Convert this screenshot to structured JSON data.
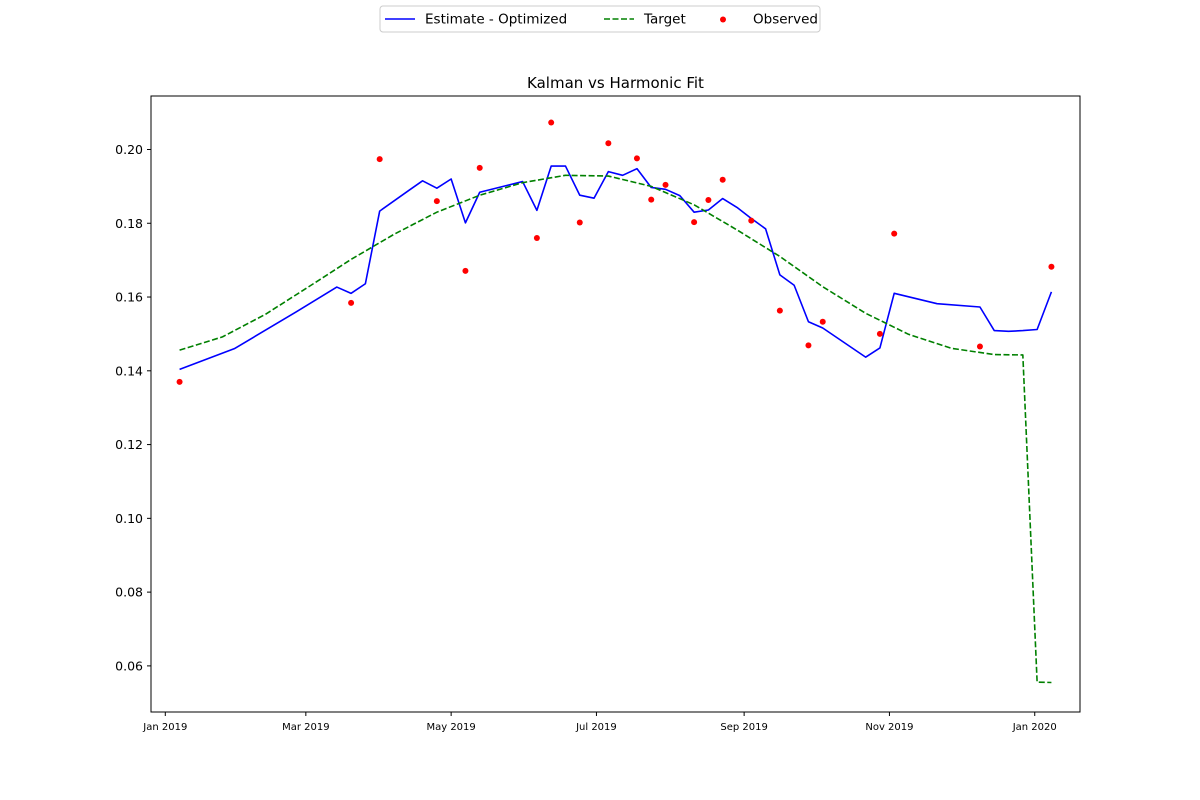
{
  "chart_data": {
    "type": "line",
    "title": "Kalman vs Harmonic Fit",
    "xlabel": "",
    "ylabel": "",
    "x_axis": {
      "type": "date",
      "range": [
        "2018-12-26",
        "2020-01-20"
      ],
      "ticks": [
        {
          "date": "2019-01-01",
          "label": "Jan 2019"
        },
        {
          "date": "2019-03-01",
          "label": "Mar 2019"
        },
        {
          "date": "2019-05-01",
          "label": "May 2019"
        },
        {
          "date": "2019-07-01",
          "label": "Jul 2019"
        },
        {
          "date": "2019-09-01",
          "label": "Sep 2019"
        },
        {
          "date": "2019-11-01",
          "label": "Nov 2019"
        },
        {
          "date": "2020-01-01",
          "label": "Jan 2020"
        }
      ]
    },
    "y_axis": {
      "range": [
        0.0475,
        0.2145
      ],
      "ticks": [
        0.06,
        0.08,
        0.1,
        0.12,
        0.14,
        0.16,
        0.18,
        0.2
      ],
      "tick_labels": [
        "0.06",
        "0.08",
        "0.10",
        "0.12",
        "0.14",
        "0.16",
        "0.18",
        "0.20"
      ]
    },
    "grid": false,
    "legend": {
      "placement": "top-center outside",
      "columns": 3
    },
    "series": [
      {
        "name": "Estimate - Optimized",
        "kind": "line",
        "style": "solid",
        "color": "#0000ff",
        "points": [
          [
            "2019-01-07",
            0.1404
          ],
          [
            "2019-01-30",
            0.146
          ],
          [
            "2019-02-25",
            0.156
          ],
          [
            "2019-03-14",
            0.1627
          ],
          [
            "2019-03-20",
            0.161
          ],
          [
            "2019-03-26",
            0.1636
          ],
          [
            "2019-04-01",
            0.1833
          ],
          [
            "2019-04-13",
            0.1888
          ],
          [
            "2019-04-19",
            0.1915
          ],
          [
            "2019-04-25",
            0.1895
          ],
          [
            "2019-05-01",
            0.192
          ],
          [
            "2019-05-07",
            0.1801
          ],
          [
            "2019-05-13",
            0.1884
          ],
          [
            "2019-05-31",
            0.1913
          ],
          [
            "2019-06-06",
            0.1835
          ],
          [
            "2019-06-12",
            0.1955
          ],
          [
            "2019-06-18",
            0.1955
          ],
          [
            "2019-06-24",
            0.1876
          ],
          [
            "2019-06-30",
            0.1868
          ],
          [
            "2019-07-06",
            0.194
          ],
          [
            "2019-07-12",
            0.193
          ],
          [
            "2019-07-18",
            0.1948
          ],
          [
            "2019-07-24",
            0.1897
          ],
          [
            "2019-07-30",
            0.1892
          ],
          [
            "2019-08-05",
            0.1875
          ],
          [
            "2019-08-11",
            0.183
          ],
          [
            "2019-08-17",
            0.1836
          ],
          [
            "2019-08-23",
            0.1867
          ],
          [
            "2019-08-29",
            0.1843
          ],
          [
            "2019-09-04",
            0.1813
          ],
          [
            "2019-09-10",
            0.1785
          ],
          [
            "2019-09-16",
            0.166
          ],
          [
            "2019-09-22",
            0.1632
          ],
          [
            "2019-09-28",
            0.1533
          ],
          [
            "2019-10-04",
            0.1516
          ],
          [
            "2019-10-22",
            0.1437
          ],
          [
            "2019-10-28",
            0.1462
          ],
          [
            "2019-11-03",
            0.161
          ],
          [
            "2019-11-21",
            0.1582
          ],
          [
            "2019-12-09",
            0.1573
          ],
          [
            "2019-12-15",
            0.1509
          ],
          [
            "2019-12-21",
            0.1507
          ],
          [
            "2019-12-27",
            0.1509
          ],
          [
            "2020-01-02",
            0.1512
          ],
          [
            "2020-01-08",
            0.1614
          ]
        ]
      },
      {
        "name": "Target",
        "kind": "line",
        "style": "dashed",
        "color": "#008000",
        "points": [
          [
            "2019-01-07",
            0.1456
          ],
          [
            "2019-01-25",
            0.1492
          ],
          [
            "2019-02-12",
            0.1553
          ],
          [
            "2019-03-02",
            0.1627
          ],
          [
            "2019-03-20",
            0.1702
          ],
          [
            "2019-04-07",
            0.177
          ],
          [
            "2019-04-25",
            0.183
          ],
          [
            "2019-05-13",
            0.1876
          ],
          [
            "2019-05-31",
            0.191
          ],
          [
            "2019-06-18",
            0.193
          ],
          [
            "2019-07-06",
            0.1928
          ],
          [
            "2019-07-24",
            0.19
          ],
          [
            "2019-08-11",
            0.185
          ],
          [
            "2019-08-29",
            0.1782
          ],
          [
            "2019-09-16",
            0.171
          ],
          [
            "2019-10-04",
            0.1628
          ],
          [
            "2019-10-22",
            0.1556
          ],
          [
            "2019-11-09",
            0.1499
          ],
          [
            "2019-11-27",
            0.1461
          ],
          [
            "2019-12-15",
            0.1444
          ],
          [
            "2019-12-27",
            0.1443
          ],
          [
            "2020-01-02",
            0.0556
          ],
          [
            "2020-01-08",
            0.0555
          ]
        ]
      },
      {
        "name": "Observed",
        "kind": "scatter",
        "color": "#ff0000",
        "points": [
          [
            "2019-01-07",
            0.137
          ],
          [
            "2019-03-20",
            0.1584
          ],
          [
            "2019-04-01",
            0.1974
          ],
          [
            "2019-04-25",
            0.186
          ],
          [
            "2019-05-07",
            0.1671
          ],
          [
            "2019-05-13",
            0.195
          ],
          [
            "2019-06-06",
            0.176
          ],
          [
            "2019-06-12",
            0.2073
          ],
          [
            "2019-06-24",
            0.1802
          ],
          [
            "2019-07-06",
            0.2017
          ],
          [
            "2019-07-18",
            0.1976
          ],
          [
            "2019-07-24",
            0.1864
          ],
          [
            "2019-07-30",
            0.1904
          ],
          [
            "2019-08-11",
            0.1803
          ],
          [
            "2019-08-17",
            0.1863
          ],
          [
            "2019-08-23",
            0.1918
          ],
          [
            "2019-09-04",
            0.1807
          ],
          [
            "2019-09-16",
            0.1563
          ],
          [
            "2019-09-28",
            0.1469
          ],
          [
            "2019-10-04",
            0.1533
          ],
          [
            "2019-10-28",
            0.15
          ],
          [
            "2019-11-03",
            0.1772
          ],
          [
            "2019-12-09",
            0.1466
          ],
          [
            "2020-01-08",
            0.1682
          ]
        ]
      }
    ]
  }
}
